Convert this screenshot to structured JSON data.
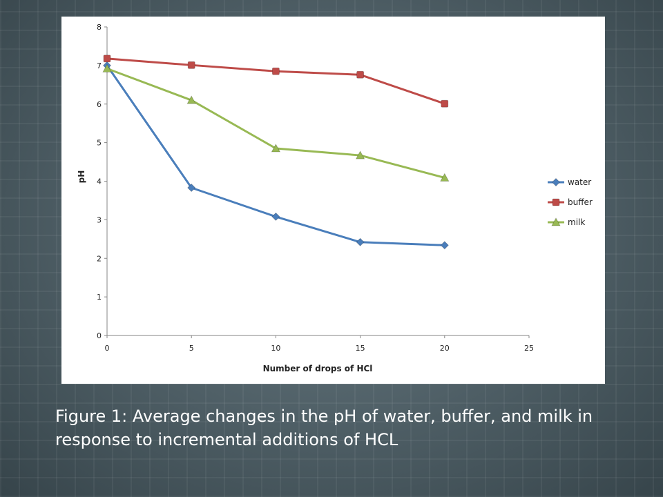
{
  "caption": "Figure 1: Average changes in the pH of water, buffer, and milk in response to incremental additions of HCL",
  "chart_data": {
    "type": "line",
    "title": "",
    "xlabel": "Number of drops of HCl",
    "ylabel": "pH",
    "xlim": [
      0,
      25
    ],
    "ylim": [
      0,
      8
    ],
    "x_ticks": [
      0,
      5,
      10,
      15,
      20,
      25
    ],
    "y_ticks": [
      0,
      1,
      2,
      3,
      4,
      5,
      6,
      7,
      8
    ],
    "grid": false,
    "legend_position": "right",
    "x": [
      0,
      5,
      10,
      15,
      20
    ],
    "series": [
      {
        "name": "water",
        "values": [
          7.0,
          3.83,
          3.08,
          2.42,
          2.34
        ],
        "color": "#4a7ebb",
        "marker": "diamond"
      },
      {
        "name": "buffer",
        "values": [
          7.18,
          7.01,
          6.85,
          6.76,
          6.01
        ],
        "color": "#be4b48",
        "marker": "square"
      },
      {
        "name": "milk",
        "values": [
          6.92,
          6.1,
          4.85,
          4.67,
          4.09
        ],
        "color": "#98b954",
        "marker": "triangle"
      }
    ]
  }
}
